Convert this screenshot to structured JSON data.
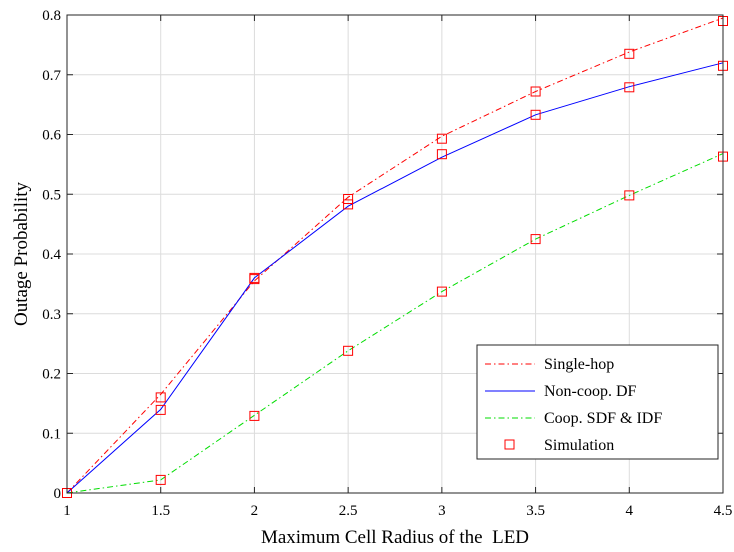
{
  "chart_data": {
    "type": "line",
    "xlabel": "Maximum Cell Radius of the  LED",
    "ylabel": "Outage Probability",
    "xlim": [
      1,
      4.5
    ],
    "ylim": [
      0,
      0.8
    ],
    "x": [
      1,
      1.5,
      2,
      2.5,
      3,
      3.5,
      4,
      4.5
    ],
    "xticks": [
      "1",
      "1.5",
      "2",
      "2.5",
      "3",
      "3.5",
      "4",
      "4.5"
    ],
    "yticks": [
      "0",
      "0.1",
      "0.2",
      "0.3",
      "0.4",
      "0.5",
      "0.6",
      "0.7",
      "0.8"
    ],
    "grid": true,
    "legend_position": "bottom-right",
    "series": [
      {
        "name": "Single-hop",
        "color": "#ff0000",
        "style": "dash-dot",
        "values": [
          0,
          0.165,
          0.355,
          0.495,
          0.597,
          0.672,
          0.738,
          0.795
        ],
        "sim": [
          0,
          0.16,
          0.358,
          0.492,
          0.593,
          0.672,
          0.735,
          0.79
        ]
      },
      {
        "name": "Non-coop. DF",
        "color": "#0000ff",
        "style": "solid",
        "values": [
          0,
          0.14,
          0.36,
          0.48,
          0.562,
          0.633,
          0.68,
          0.72
        ],
        "sim": [
          0,
          0.139,
          0.36,
          0.483,
          0.567,
          0.633,
          0.679,
          0.715
        ]
      },
      {
        "name": "Coop. SDF & IDF",
        "color": "#00dd00",
        "style": "dash-dot",
        "values": [
          0,
          0.022,
          0.13,
          0.238,
          0.337,
          0.425,
          0.498,
          0.568
        ],
        "sim": [
          0,
          0.022,
          0.129,
          0.238,
          0.337,
          0.425,
          0.498,
          0.563
        ]
      }
    ],
    "simulation_legend": {
      "name": "Simulation",
      "color": "#ff0000",
      "marker": "square"
    }
  }
}
